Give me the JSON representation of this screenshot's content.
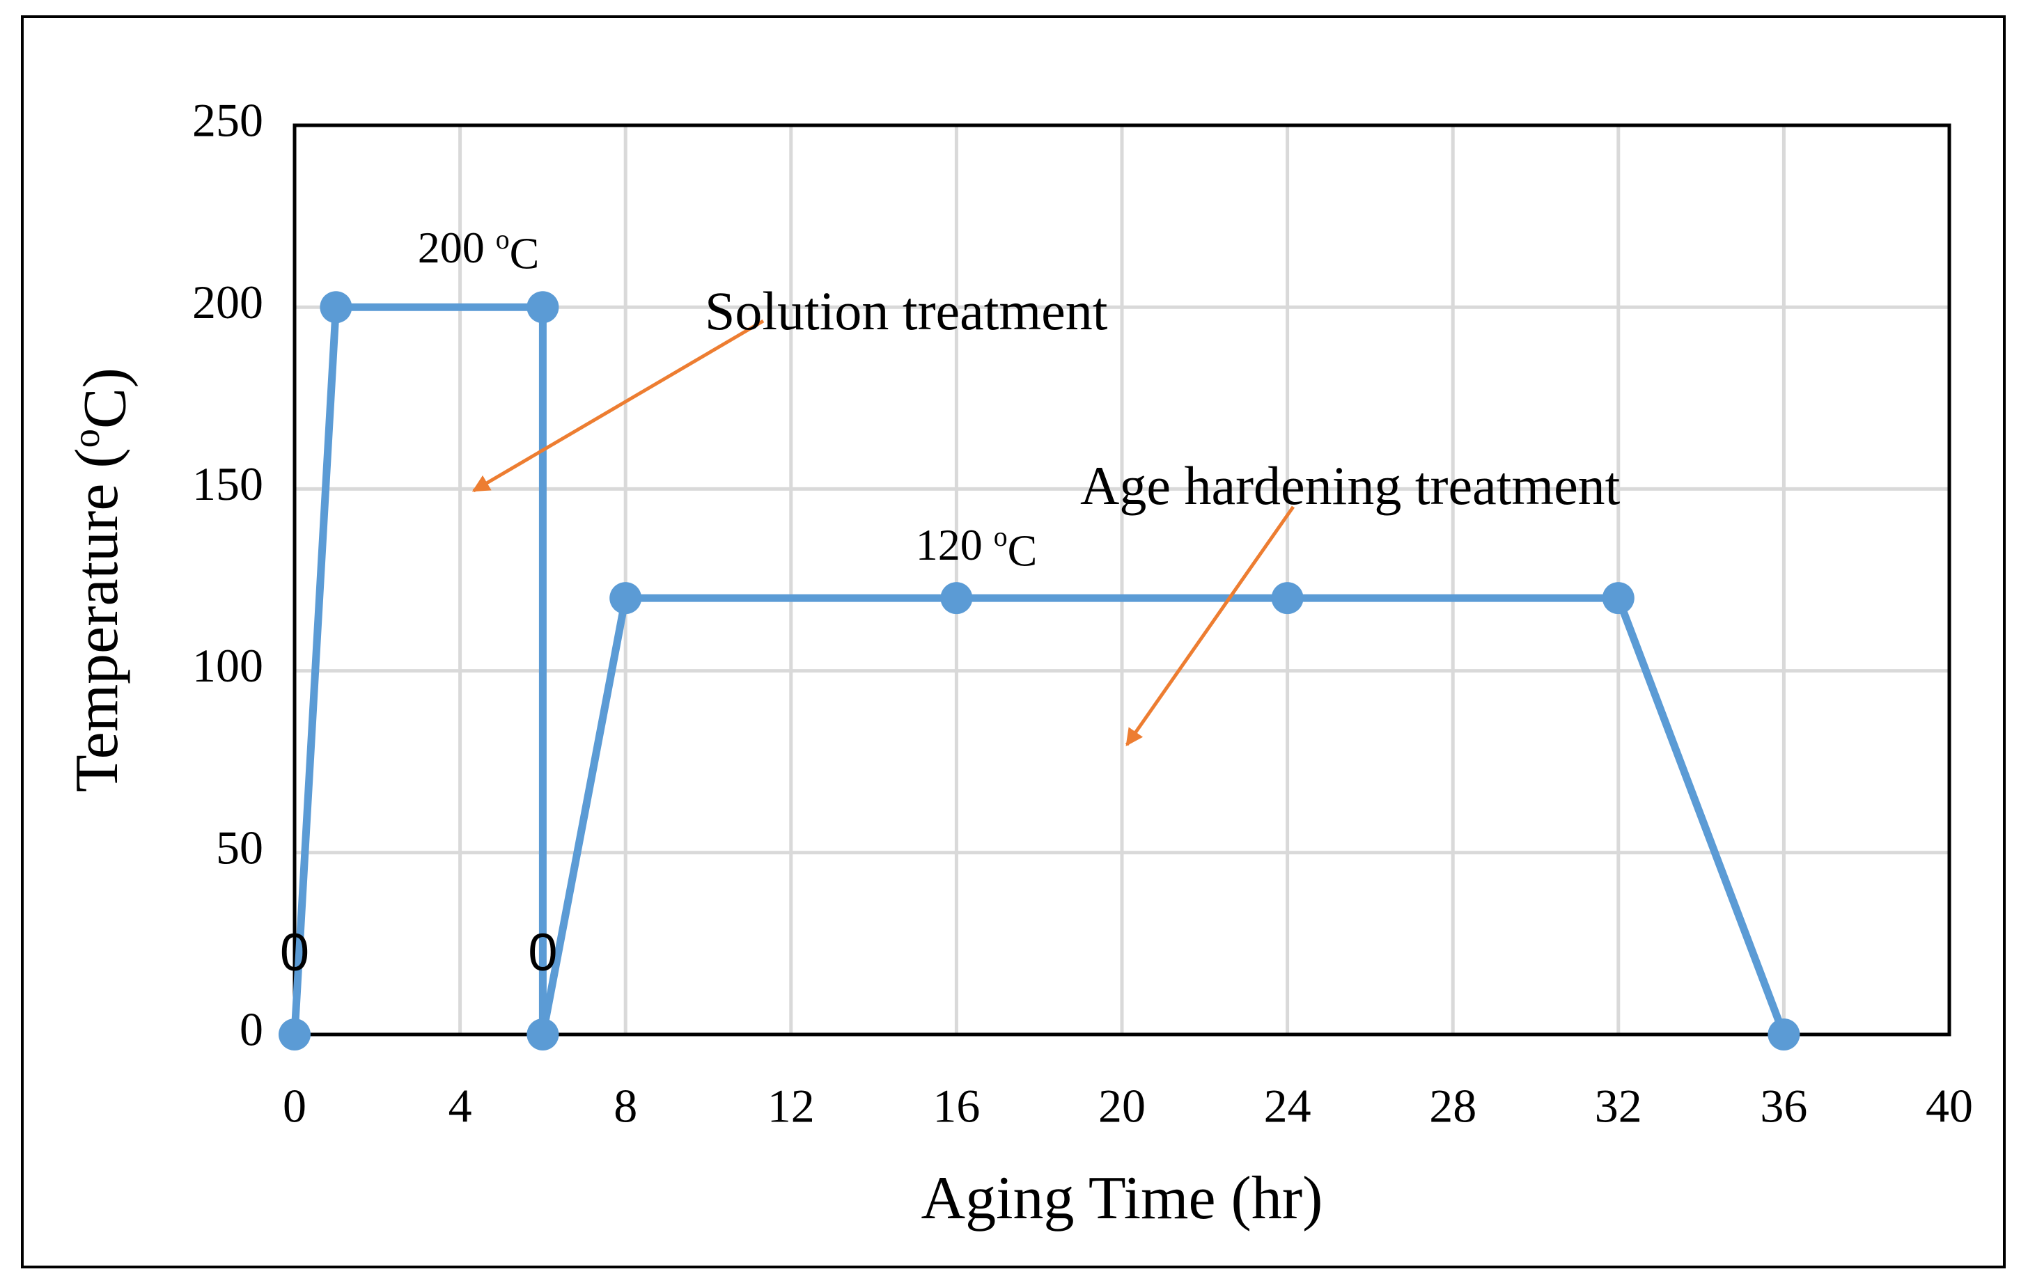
{
  "chart_data": {
    "type": "line",
    "x_label": [
      "Aging Time (hr)"
    ],
    "y_label": [
      "Temperature (",
      "o",
      "C)"
    ],
    "x": [
      0,
      1,
      6,
      6,
      8,
      16,
      24,
      32,
      36
    ],
    "series": [
      {
        "color": "#5b9bd5",
        "values": [
          0,
          200,
          200,
          0,
          120,
          120,
          120,
          120,
          0
        ],
        "value_labels": [
          "0",
          null,
          null,
          "0",
          null,
          null,
          null,
          null,
          null
        ]
      }
    ],
    "xlim": [
      0,
      40
    ],
    "xticks": [
      0,
      4,
      8,
      12,
      16,
      20,
      24,
      28,
      32,
      36,
      40
    ],
    "ylim": [
      0,
      250
    ],
    "yticks": [
      0,
      50,
      100,
      150,
      200,
      250
    ],
    "grid": true,
    "annotations": [
      {
        "parts": [
          "200 ",
          "o",
          "C"
        ]
      },
      {
        "parts": [
          "Solution treatment"
        ]
      },
      {
        "parts": [
          "120 ",
          "o",
          "C"
        ]
      },
      {
        "parts": [
          "Age hardening treatment"
        ]
      }
    ],
    "arrow_color": "#ed7d31"
  }
}
